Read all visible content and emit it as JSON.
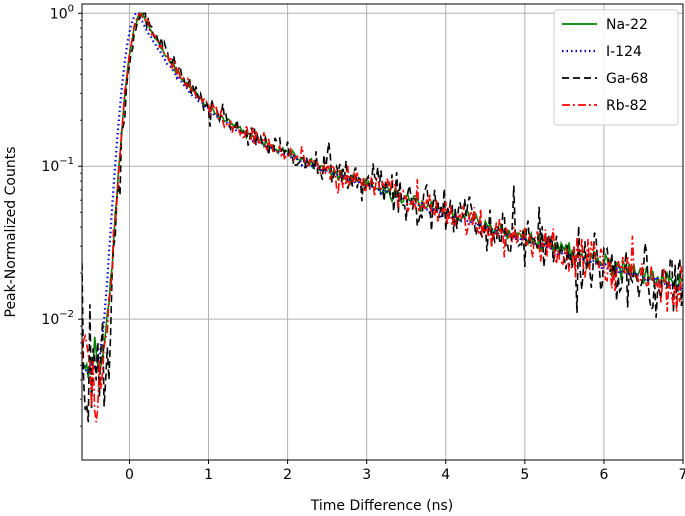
{
  "chart_data": {
    "type": "line",
    "title": "",
    "xlabel": "Time Difference (ns)",
    "ylabel": "Peak-Normalized Counts",
    "xlim": [
      -0.6,
      7.0
    ],
    "ylim": [
      0.0012,
      1.15
    ],
    "yscale": "log",
    "grid": true,
    "legend_position": "top-right",
    "x_ticks": [
      0,
      1,
      2,
      3,
      4,
      5,
      6,
      7
    ],
    "x_tick_labels": [
      "0",
      "1",
      "2",
      "3",
      "4",
      "5",
      "6",
      "7"
    ],
    "y_ticks": [
      0.01,
      0.1,
      1
    ],
    "y_tick_labels": [
      {
        "base": "10",
        "exp": "−2"
      },
      {
        "base": "10",
        "exp": "−1"
      },
      {
        "base": "10",
        "exp": "0"
      }
    ],
    "series": [
      {
        "name": "Na-22",
        "color": "#008000",
        "style": "solid",
        "tail": 0.0052,
        "noise": 0.12,
        "shift": 0.0,
        "seed": 11
      },
      {
        "name": "I-124",
        "color": "#0000cc",
        "style": "dotted",
        "tail": 0.0045,
        "noise": 0.04,
        "shift": -0.05,
        "seed": 23
      },
      {
        "name": "Ga-68",
        "color": "#000000",
        "style": "dashed",
        "tail": 0.0043,
        "noise": 0.55,
        "shift": 0.02,
        "seed": 37
      },
      {
        "name": "Rb-82",
        "color": "#ff0000",
        "style": "dashdot",
        "tail": 0.0046,
        "noise": 0.3,
        "shift": 0.0,
        "seed": 51
      }
    ]
  }
}
